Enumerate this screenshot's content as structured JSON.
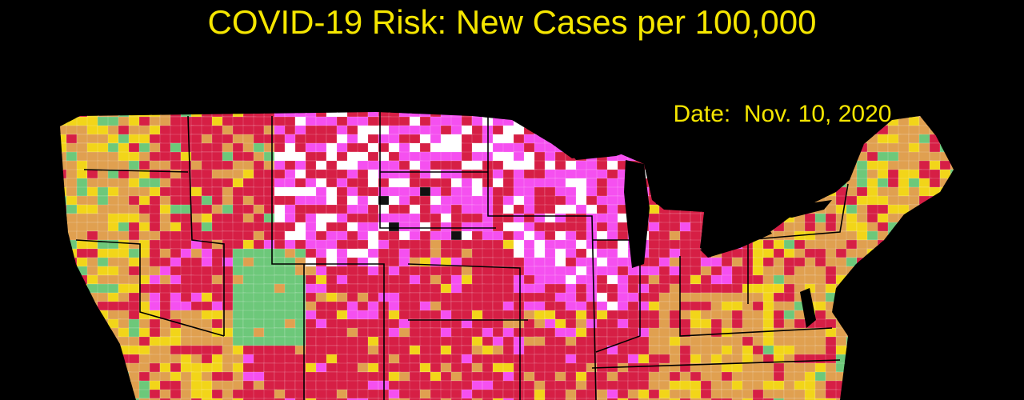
{
  "title": "COVID-19 Risk: New Cases per 100,000",
  "date_label": "Date:  Nov. 10, 2020"
}
